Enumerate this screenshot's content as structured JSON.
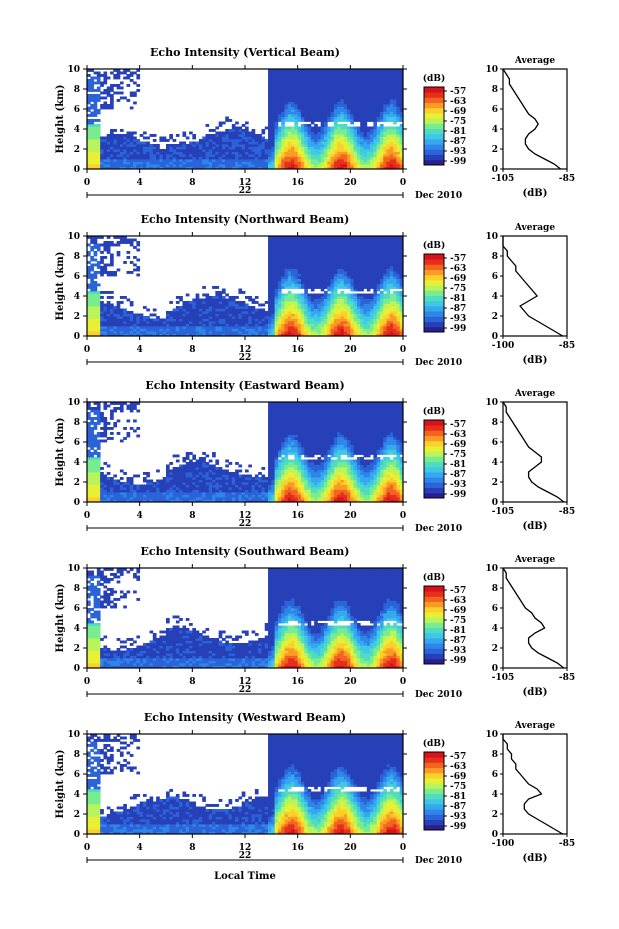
{
  "figure": {
    "x_label_bottom": "Local Time"
  },
  "chart_data": [
    {
      "type": "heatmap",
      "title": "Echo Intensity (Vertical Beam)",
      "ylabel": "Height (km)",
      "xlabel": "",
      "x_ticks": [
        "0",
        "4",
        "8",
        "12",
        "16",
        "20",
        "0"
      ],
      "x_range": [
        0,
        24
      ],
      "y_range": [
        0,
        10
      ],
      "y_ticks": [
        "0",
        "2",
        "4",
        "6",
        "8",
        "10"
      ],
      "date_day": "22",
      "date_label": "Dec 2010",
      "colorbar": {
        "label": "(dB)",
        "ticks": [
          "-57",
          "-63",
          "-69",
          "-75",
          "-81",
          "-87",
          "-93",
          "-99"
        ]
      },
      "profile": {
        "title": "Average",
        "xlabel": "(dB)",
        "x_ticks": [
          "-105",
          "-85"
        ],
        "x_range": [
          -105,
          -85
        ],
        "y_ticks": [
          "0",
          "2",
          "4",
          "6",
          "8",
          "10"
        ],
        "heights": [
          0,
          0.5,
          1,
          1.5,
          2,
          2.5,
          3,
          3.5,
          4,
          4.5,
          5,
          5.5,
          6,
          6.5,
          7,
          7.5,
          8,
          8.5,
          9,
          9.5,
          10
        ],
        "values": [
          -87,
          -89,
          -92,
          -95,
          -97,
          -98,
          -98,
          -97,
          -95,
          -94,
          -95,
          -97,
          -98,
          -99,
          -100,
          -101,
          -102,
          -103,
          -103,
          -104,
          -105
        ]
      }
    },
    {
      "type": "heatmap",
      "title": "Echo Intensity (Northward Beam)",
      "ylabel": "Height (km)",
      "xlabel": "",
      "x_ticks": [
        "0",
        "4",
        "8",
        "12",
        "16",
        "20",
        "0"
      ],
      "x_range": [
        0,
        24
      ],
      "y_range": [
        0,
        10
      ],
      "y_ticks": [
        "0",
        "2",
        "4",
        "6",
        "8",
        "10"
      ],
      "date_day": "22",
      "date_label": "Dec 2010",
      "colorbar": {
        "label": "(dB)",
        "ticks": [
          "-57",
          "-63",
          "-69",
          "-75",
          "-81",
          "-87",
          "-93",
          "-99"
        ]
      },
      "profile": {
        "title": "Average",
        "xlabel": "(dB)",
        "x_ticks": [
          "-100",
          "-85"
        ],
        "x_range": [
          -100,
          -85
        ],
        "y_ticks": [
          "0",
          "2",
          "4",
          "6",
          "8",
          "10"
        ],
        "heights": [
          0,
          0.5,
          1,
          1.5,
          2,
          2.5,
          3,
          3.5,
          4,
          4.5,
          5,
          5.5,
          6,
          6.5,
          7,
          7.5,
          8,
          8.5,
          9,
          9.5,
          10
        ],
        "values": [
          -86,
          -88,
          -90,
          -92,
          -94,
          -95,
          -96,
          -94,
          -92,
          -93,
          -94,
          -95,
          -96,
          -97,
          -97,
          -98,
          -99,
          -99,
          -100,
          -100,
          -100
        ]
      }
    },
    {
      "type": "heatmap",
      "title": "Echo Intensity (Eastward Beam)",
      "ylabel": "Height (km)",
      "xlabel": "",
      "x_ticks": [
        "0",
        "4",
        "8",
        "12",
        "16",
        "20",
        "0"
      ],
      "x_range": [
        0,
        24
      ],
      "y_range": [
        0,
        10
      ],
      "y_ticks": [
        "0",
        "2",
        "4",
        "6",
        "8",
        "10"
      ],
      "date_day": "22",
      "date_label": "Dec 2010",
      "colorbar": {
        "label": "(dB)",
        "ticks": [
          "-57",
          "-63",
          "-69",
          "-75",
          "-81",
          "-87",
          "-93",
          "-99"
        ]
      },
      "profile": {
        "title": "Average",
        "xlabel": "(dB)",
        "x_ticks": [
          "-105",
          "-85"
        ],
        "x_range": [
          -105,
          -85
        ],
        "y_ticks": [
          "0",
          "2",
          "4",
          "6",
          "8",
          "10"
        ],
        "heights": [
          0,
          0.5,
          1,
          1.5,
          2,
          2.5,
          3,
          3.5,
          4,
          4.5,
          5,
          5.5,
          6,
          6.5,
          7,
          7.5,
          8,
          8.5,
          9,
          9.5,
          10
        ],
        "values": [
          -86,
          -88,
          -91,
          -94,
          -96,
          -97,
          -97,
          -95,
          -93,
          -93,
          -95,
          -97,
          -98,
          -99,
          -100,
          -101,
          -102,
          -103,
          -104,
          -104,
          -105
        ]
      }
    },
    {
      "type": "heatmap",
      "title": "Echo Intensity (Southward Beam)",
      "ylabel": "Height (km)",
      "xlabel": "",
      "x_ticks": [
        "0",
        "4",
        "8",
        "12",
        "16",
        "20",
        "0"
      ],
      "x_range": [
        0,
        24
      ],
      "y_range": [
        0,
        10
      ],
      "y_ticks": [
        "0",
        "2",
        "4",
        "6",
        "8",
        "10"
      ],
      "date_day": "22",
      "date_label": "Dec 2010",
      "colorbar": {
        "label": "(dB)",
        "ticks": [
          "-57",
          "-63",
          "-69",
          "-75",
          "-81",
          "-87",
          "-93",
          "-99"
        ]
      },
      "profile": {
        "title": "Average",
        "xlabel": "(dB)",
        "x_ticks": [
          "-105",
          "-85"
        ],
        "x_range": [
          -105,
          -85
        ],
        "y_ticks": [
          "0",
          "2",
          "4",
          "6",
          "8",
          "10"
        ],
        "heights": [
          0,
          0.5,
          1,
          1.5,
          2,
          2.5,
          3,
          3.5,
          4,
          4.5,
          5,
          5.5,
          6,
          6.5,
          7,
          7.5,
          8,
          8.5,
          9,
          9.5,
          10
        ],
        "values": [
          -86,
          -88,
          -91,
          -94,
          -96,
          -97,
          -97,
          -95,
          -92,
          -93,
          -95,
          -96,
          -98,
          -99,
          -100,
          -101,
          -102,
          -103,
          -104,
          -104,
          -105
        ]
      }
    },
    {
      "type": "heatmap",
      "title": "Echo Intensity (Westward Beam)",
      "ylabel": "Height (km)",
      "xlabel": "",
      "x_ticks": [
        "0",
        "4",
        "8",
        "12",
        "16",
        "20",
        "0"
      ],
      "x_range": [
        0,
        24
      ],
      "y_range": [
        0,
        10
      ],
      "y_ticks": [
        "0",
        "2",
        "4",
        "6",
        "8",
        "10"
      ],
      "date_day": "22",
      "date_label": "Dec 2010",
      "colorbar": {
        "label": "(dB)",
        "ticks": [
          "-57",
          "-63",
          "-69",
          "-75",
          "-81",
          "-87",
          "-93",
          "-99"
        ]
      },
      "profile": {
        "title": "Average",
        "xlabel": "(dB)",
        "x_ticks": [
          "-100",
          "-85"
        ],
        "x_range": [
          -100,
          -85
        ],
        "y_ticks": [
          "0",
          "2",
          "4",
          "6",
          "8",
          "10"
        ],
        "heights": [
          0,
          0.5,
          1,
          1.5,
          2,
          2.5,
          3,
          3.5,
          4,
          4.5,
          5,
          5.5,
          6,
          6.5,
          7,
          7.5,
          8,
          8.5,
          9,
          9.5,
          10
        ],
        "values": [
          -86,
          -88,
          -90,
          -92,
          -94,
          -95,
          -95,
          -94,
          -91,
          -92,
          -94,
          -95,
          -96,
          -97,
          -97,
          -98,
          -98,
          -99,
          -99,
          -100,
          -100
        ]
      }
    }
  ]
}
